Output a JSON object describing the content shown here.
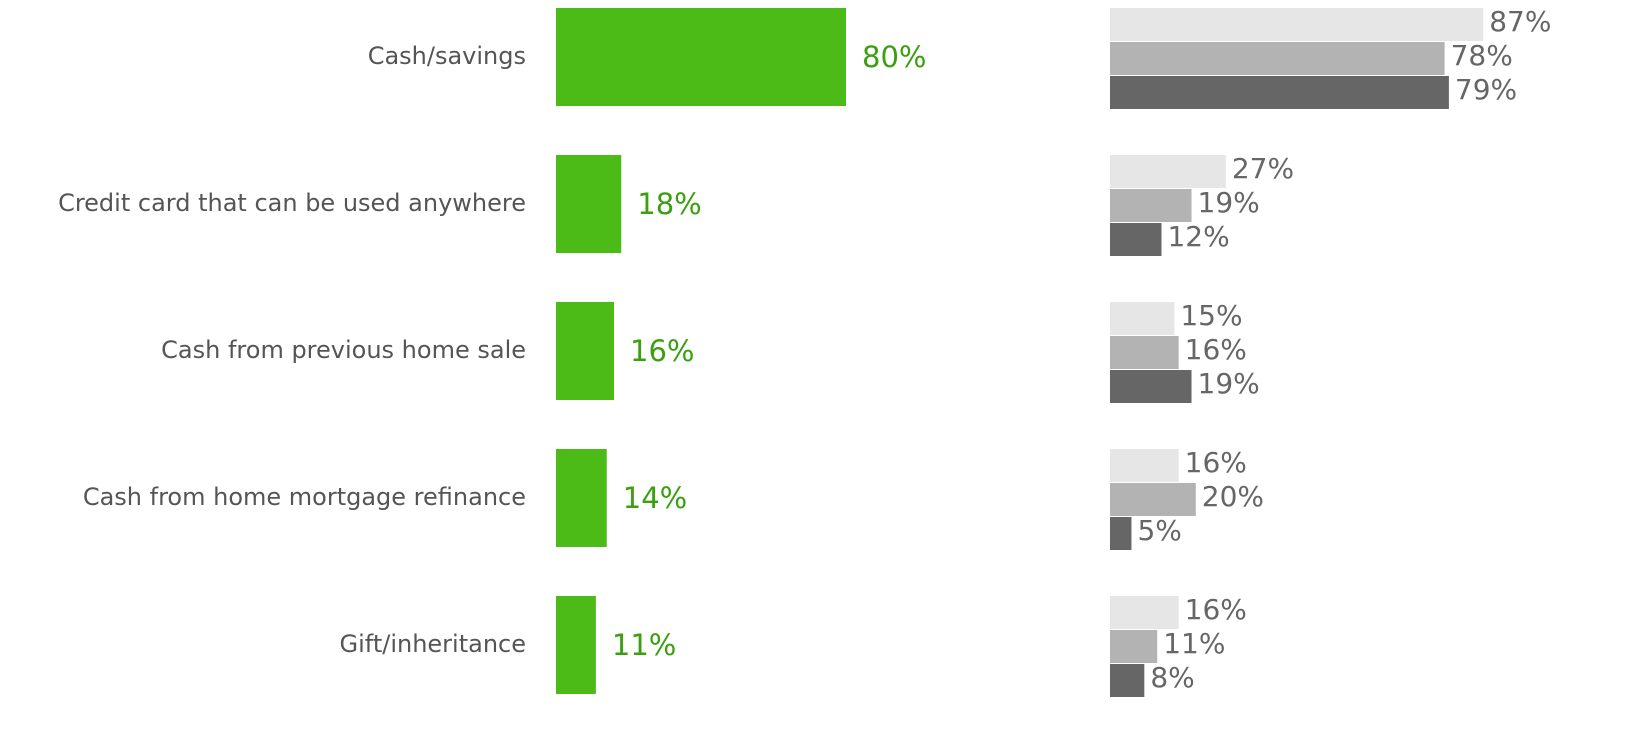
{
  "chart_data": [
    {
      "type": "bar",
      "categories": [
        "Cash/savings",
        "Credit card that can be used anywhere",
        "Cash from previous home sale",
        "Cash from home mortgage refinance",
        "Gift/inheritance"
      ],
      "values": [
        80,
        18,
        16,
        14,
        11
      ],
      "value_labels": [
        "80%",
        "18%",
        "16%",
        "14%",
        "11%"
      ],
      "color": "#4cbb17",
      "xlim": [
        0,
        100
      ]
    },
    {
      "type": "bar",
      "series": [
        {
          "color": "#e6e6e6",
          "values": [
            87,
            27,
            15,
            16,
            16
          ],
          "value_labels": [
            "87%",
            "27%",
            "15%",
            "16%",
            "16%"
          ]
        },
        {
          "color": "#b3b3b3",
          "values": [
            78,
            19,
            16,
            20,
            11
          ],
          "value_labels": [
            "78%",
            "19%",
            "16%",
            "20%",
            "11%"
          ]
        },
        {
          "color": "#666666",
          "values": [
            79,
            12,
            19,
            5,
            8
          ],
          "value_labels": [
            "79%",
            "12%",
            "19%",
            "5%",
            "8%"
          ]
        }
      ],
      "xlim": [
        0,
        100
      ]
    }
  ]
}
